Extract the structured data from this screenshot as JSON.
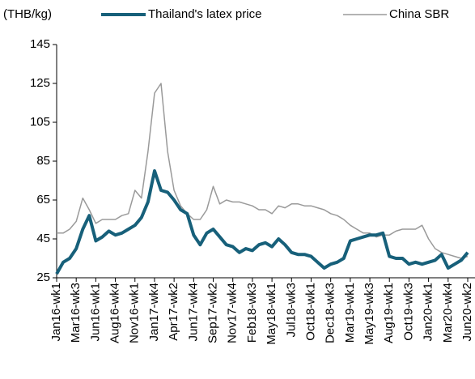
{
  "chart_data": {
    "type": "line",
    "y_label": "(THB/kg)",
    "categories": [
      "Jan16-wk1",
      null,
      null,
      "Mar16-wk3",
      null,
      null,
      "Jun16-wk1",
      null,
      null,
      "Aug16-wk4",
      null,
      null,
      "Nov16-wk1",
      null,
      null,
      "Jan17-wk4",
      null,
      null,
      "Apr17-wk2",
      null,
      null,
      "Jun17-wk4",
      null,
      null,
      "Sep17-wk2",
      null,
      null,
      "Nov17-wk4",
      null,
      null,
      "Feb18-wk3",
      null,
      null,
      "May18-wk1",
      null,
      null,
      "Jul18-wk3",
      null,
      null,
      "Oct18-wk1",
      null,
      null,
      "Dec18-wk3",
      null,
      null,
      "Mar19-wk1",
      null,
      null,
      "May19-wk3",
      null,
      null,
      "Aug19-wk1",
      null,
      null,
      "Oct19-wk3",
      null,
      null,
      "Jan20-wk1",
      null,
      null,
      "Mar20-wk4",
      null,
      null,
      "Jun20-wk2"
    ],
    "series": [
      {
        "name": "Thailand's latex price",
        "color": "#17607a",
        "width": 4,
        "values": [
          27,
          33,
          35,
          40,
          50,
          57,
          44,
          46,
          49,
          47,
          48,
          50,
          52,
          56,
          64,
          80,
          70,
          69,
          65,
          60,
          58,
          47,
          42,
          48,
          50,
          46,
          42,
          41,
          38,
          40,
          39,
          42,
          43,
          41,
          45,
          42,
          38,
          37,
          37,
          36,
          33,
          30,
          32,
          33,
          35,
          44,
          45,
          46,
          47,
          47,
          48,
          36,
          35,
          35,
          32,
          33,
          32,
          33,
          34,
          37,
          30,
          32,
          34,
          38
        ]
      },
      {
        "name": "China SBR",
        "color": "#9a9a9a",
        "width": 1.5,
        "values": [
          48,
          48,
          50,
          54,
          66,
          60,
          53,
          55,
          55,
          55,
          57,
          58,
          70,
          66,
          90,
          120,
          125,
          90,
          70,
          62,
          58,
          55,
          55,
          60,
          72,
          63,
          65,
          64,
          64,
          63,
          62,
          60,
          60,
          58,
          62,
          61,
          63,
          63,
          62,
          62,
          61,
          60,
          58,
          57,
          55,
          52,
          50,
          48,
          48,
          46,
          47,
          47,
          49,
          50,
          50,
          50,
          52,
          45,
          40,
          38,
          37,
          36,
          35,
          36
        ]
      }
    ],
    "ylim": [
      25,
      145
    ],
    "yticks": [
      25,
      45,
      65,
      85,
      105,
      125,
      145
    ]
  }
}
